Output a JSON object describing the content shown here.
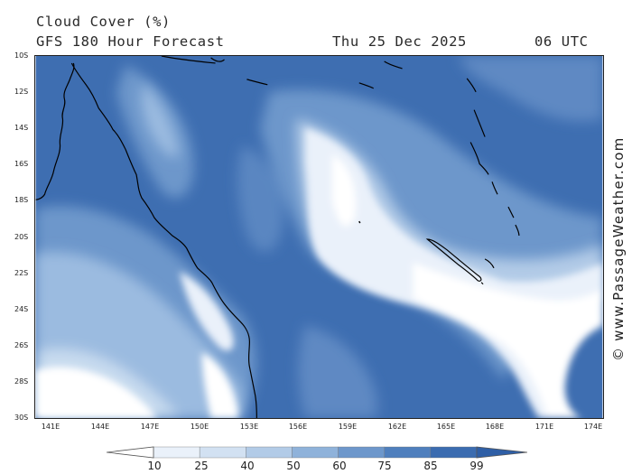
{
  "header": {
    "title": "Cloud Cover (%)",
    "subtitle": "GFS 180 Hour Forecast",
    "date": "Thu 25 Dec 2025",
    "time": "06 UTC"
  },
  "axes": {
    "lat_labels": [
      "10S",
      "12S",
      "14S",
      "16S",
      "18S",
      "20S",
      "22S",
      "24S",
      "26S",
      "28S",
      "30S"
    ],
    "lon_labels": [
      "141E",
      "144E",
      "147E",
      "150E",
      "153E",
      "156E",
      "159E",
      "162E",
      "165E",
      "168E",
      "171E",
      "174E"
    ]
  },
  "watermark": "© www.PassageWeather.com",
  "colorbar": {
    "labels": [
      "10",
      "25",
      "40",
      "50",
      "60",
      "75",
      "85",
      "99"
    ],
    "colors": [
      "#ffffff",
      "#eaf1fa",
      "#d2e1f2",
      "#b2cbe7",
      "#8fb2da",
      "#6d97cb",
      "#4f7fbd",
      "#3b6cb0",
      "#2f5fa6"
    ]
  },
  "colors": {
    "ocean_deep": "#3e6eb1",
    "coastline": "#000000"
  }
}
